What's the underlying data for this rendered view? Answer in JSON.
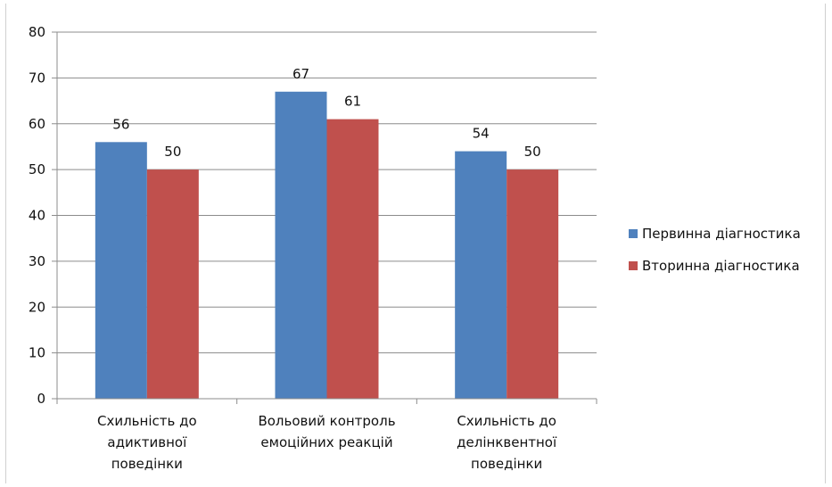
{
  "chart_data": {
    "type": "bar",
    "categories": [
      [
        "Схильність до",
        "адиктивної",
        "поведінки"
      ],
      [
        "Вольовий контроль",
        "емоційних реакцій"
      ],
      [
        "Схильність до",
        "делінквентної",
        "поведінки"
      ]
    ],
    "series": [
      {
        "name": "Первинна діагностика",
        "values": [
          56,
          67,
          54
        ],
        "color": "#4f81bd"
      },
      {
        "name": "Вторинна діагностика",
        "values": [
          50,
          61,
          50
        ],
        "color": "#c0504d"
      }
    ],
    "ylim": [
      0,
      80
    ],
    "yticks": [
      0,
      10,
      20,
      30,
      40,
      50,
      60,
      70,
      80
    ],
    "grid": true,
    "legend": "right"
  }
}
